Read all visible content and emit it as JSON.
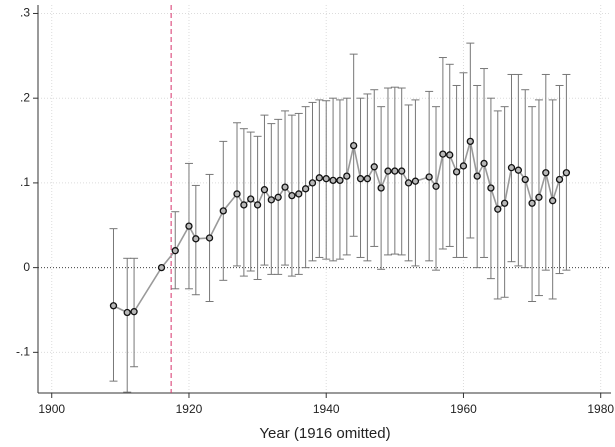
{
  "chart_data": {
    "type": "errorbar",
    "x_label": "Year (1916 omitted)",
    "xlim": [
      1898,
      1981.5
    ],
    "ylim": [
      -0.148,
      0.31
    ],
    "xticks": [
      1900,
      1920,
      1940,
      1960,
      1980
    ],
    "yticks": [
      {
        "value": 0.3,
        "label": ".3"
      },
      {
        "value": 0.2,
        "label": ".2"
      },
      {
        "value": 0.1,
        "label": ".1"
      },
      0,
      {
        "value": -0.1,
        "label": "-.1"
      }
    ],
    "grid": true,
    "reference_x": 1917.4,
    "reference_x_color": "#d6336c",
    "reference_y": 0,
    "line_color": "#9a9a9a",
    "errorbar_color": "#777777",
    "marker_edge_color": "#111111",
    "marker_fill_color": "#b8b8b8",
    "x": [
      1909,
      1911,
      1912,
      1916,
      1918,
      1920,
      1921,
      1923,
      1925,
      1927,
      1928,
      1929,
      1930,
      1931,
      1932,
      1933,
      1934,
      1935,
      1936,
      1937,
      1938,
      1939,
      1940,
      1941,
      1942,
      1943,
      1944,
      1945,
      1946,
      1947,
      1948,
      1949,
      1950,
      1951,
      1952,
      1953,
      1955,
      1956,
      1957,
      1958,
      1959,
      1960,
      1961,
      1962,
      1963,
      1964,
      1965,
      1966,
      1967,
      1968,
      1969,
      1970,
      1971,
      1972,
      1973,
      1974,
      1975
    ],
    "values": [
      -0.045,
      -0.053,
      -0.052,
      0,
      0.02,
      0.049,
      0.034,
      0.035,
      0.067,
      0.087,
      0.074,
      0.081,
      0.074,
      0.092,
      0.08,
      0.083,
      0.095,
      0.085,
      0.087,
      0.093,
      0.1,
      0.106,
      0.105,
      0.103,
      0.103,
      0.108,
      0.144,
      0.105,
      0.105,
      0.119,
      0.094,
      0.114,
      0.114,
      0.114,
      0.1,
      0.102,
      0.107,
      0.096,
      0.134,
      0.133,
      0.113,
      0.12,
      0.149,
      0.108,
      0.123,
      0.094,
      0.069,
      0.076,
      0.118,
      0.115,
      0.104,
      0.076,
      0.083,
      0.112,
      0.079,
      0.104,
      0.112
    ],
    "ci_low": [
      -0.134,
      -0.147,
      -0.117,
      null,
      -0.025,
      -0.025,
      -0.032,
      -0.04,
      -0.015,
      0.002,
      -0.01,
      -0.004,
      -0.014,
      0.003,
      -0.008,
      -0.008,
      0.003,
      -0.01,
      -0.008,
      0.0,
      0.008,
      0.012,
      0.01,
      0.008,
      0.01,
      0.015,
      0.037,
      0.012,
      0.008,
      0.025,
      -0.002,
      0.015,
      0.016,
      0.015,
      0.008,
      0.002,
      0.008,
      -0.003,
      0.022,
      0.025,
      0.012,
      0.012,
      0.035,
      0.0,
      0.012,
      -0.013,
      -0.037,
      -0.035,
      0.007,
      0.002,
      0.0,
      -0.04,
      -0.033,
      -0.003,
      -0.037,
      -0.007,
      -0.003
    ],
    "ci_high": [
      0.046,
      0.011,
      0.011,
      null,
      0.066,
      0.123,
      0.097,
      0.11,
      0.149,
      0.171,
      0.164,
      0.16,
      0.155,
      0.18,
      0.17,
      0.175,
      0.185,
      0.18,
      0.182,
      0.19,
      0.195,
      0.198,
      0.197,
      0.2,
      0.198,
      0.2,
      0.252,
      0.2,
      0.205,
      0.21,
      0.19,
      0.212,
      0.213,
      0.212,
      0.192,
      0.198,
      0.208,
      0.19,
      0.248,
      0.24,
      0.215,
      0.23,
      0.265,
      0.215,
      0.235,
      0.2,
      0.185,
      0.19,
      0.228,
      0.228,
      0.21,
      0.19,
      0.198,
      0.228,
      0.198,
      0.215,
      0.228
    ]
  }
}
